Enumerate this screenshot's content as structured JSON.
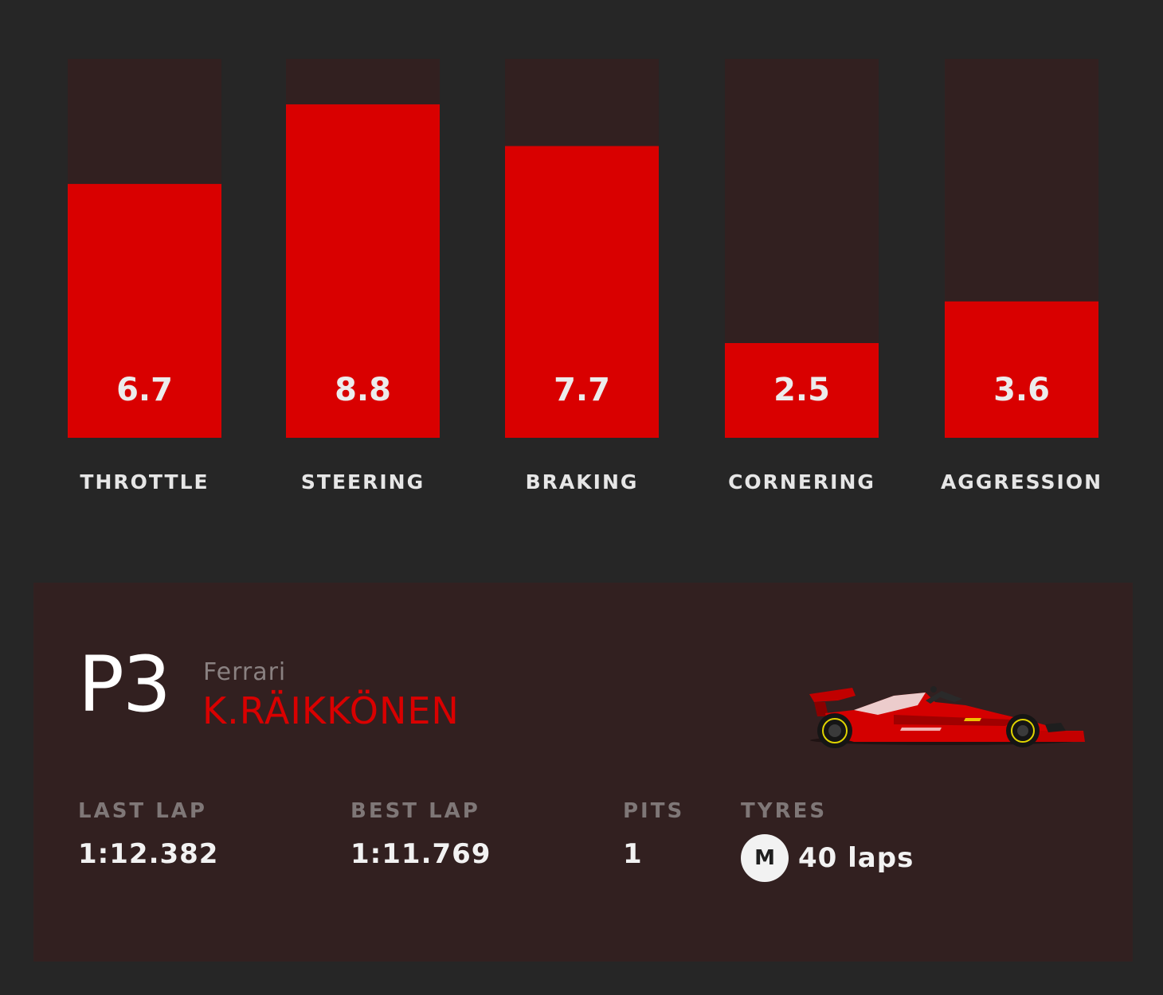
{
  "chart_data": {
    "type": "bar",
    "categories": [
      "THROTTLE",
      "STEERING",
      "BRAKING",
      "CORNERING",
      "AGGRESSION"
    ],
    "values": [
      6.7,
      8.8,
      7.7,
      2.5,
      3.6
    ],
    "value_labels": [
      "6.7",
      "8.8",
      "7.7",
      "2.5",
      "3.6"
    ],
    "ylim": [
      0,
      10
    ],
    "grid": false,
    "colors": {
      "bar": "#d90000",
      "track": "#322020",
      "background": "#262626"
    }
  },
  "driver_card": {
    "position": "P3",
    "team": "Ferrari",
    "driver": "K.RÄIKKÖNEN",
    "car_icon": "ferrari-f1-car-icon",
    "stats": {
      "last_lap_label": "LAST LAP",
      "last_lap_value": "1:12.382",
      "best_lap_label": "BEST LAP",
      "best_lap_value": "1:11.769",
      "pits_label": "PITS",
      "pits_value": "1",
      "tyres_label": "TYRES",
      "tyre_compound": "M",
      "tyre_laps": "40 laps"
    }
  }
}
